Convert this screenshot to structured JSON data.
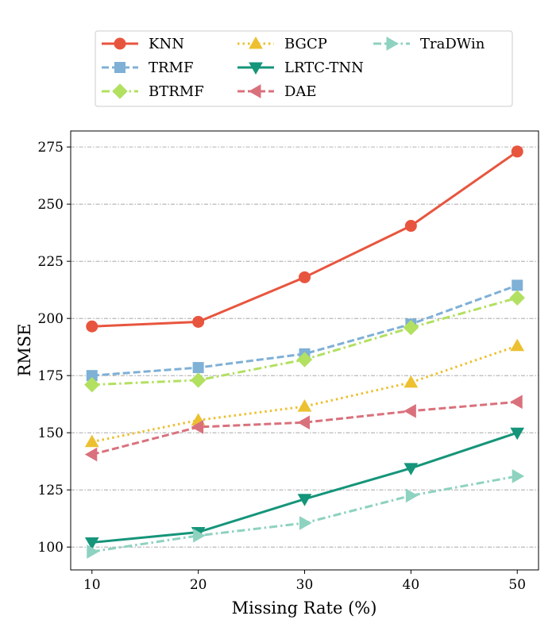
{
  "chart_data": {
    "type": "line",
    "title": "",
    "xlabel": "Missing Rate (%)",
    "ylabel": "RMSE",
    "x": [
      10,
      20,
      30,
      40,
      50
    ],
    "xlim": [
      8,
      52
    ],
    "ylim": [
      90,
      282
    ],
    "xticks": [
      10,
      20,
      30,
      40,
      50
    ],
    "yticks": [
      100,
      125,
      150,
      175,
      200,
      225,
      250,
      275
    ],
    "grid": "horizontal dash-dot",
    "legend": {
      "placement": "top, above plot",
      "columns": 3
    },
    "series": [
      {
        "name": "KNN",
        "color": "#e8553e",
        "marker": "circle",
        "dash": "solid",
        "values": [
          196.5,
          198.5,
          218.0,
          240.5,
          273.0
        ]
      },
      {
        "name": "TRMF",
        "color": "#7fb0d6",
        "marker": "square",
        "dash": "dashed",
        "values": [
          175.0,
          178.5,
          184.5,
          197.5,
          214.5
        ]
      },
      {
        "name": "BTRMF",
        "color": "#b2e061",
        "marker": "diamond",
        "dash": "dashdot",
        "values": [
          171.0,
          173.0,
          182.0,
          196.0,
          209.0
        ]
      },
      {
        "name": "BGCP",
        "color": "#ecc030",
        "marker": "triangle-up",
        "dash": "dotted",
        "values": [
          146.0,
          155.5,
          161.5,
          172.0,
          188.0
        ]
      },
      {
        "name": "LRTC-TNN",
        "color": "#15957a",
        "marker": "triangle-down",
        "dash": "solid",
        "values": [
          102.0,
          106.5,
          121.0,
          134.5,
          150.0
        ]
      },
      {
        "name": "DAE",
        "color": "#d9717c",
        "marker": "triangle-left",
        "dash": "dashed",
        "values": [
          140.5,
          152.5,
          154.5,
          159.5,
          163.5
        ]
      },
      {
        "name": "TraDWin",
        "color": "#8ed2c0",
        "marker": "triangle-right",
        "dash": "dashdot",
        "values": [
          98.0,
          105.0,
          110.5,
          122.5,
          131.0
        ]
      }
    ]
  }
}
